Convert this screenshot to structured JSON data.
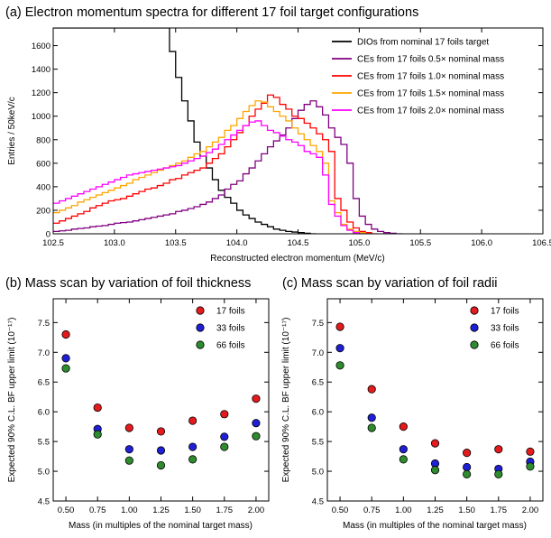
{
  "chart_data": [
    {
      "panel": "a",
      "type": "line",
      "title": "(a) Electron momentum spectra for different 17 foil target configurations",
      "xlabel": "Reconstructed electron momentum (MeV/c)",
      "ylabel": "Entries / 50keV/c",
      "xlim": [
        102.5,
        106.5
      ],
      "ylim": [
        0,
        1750
      ],
      "xticks": [
        "102.5",
        "103.0",
        "103.5",
        "104.0",
        "104.5",
        "105.0",
        "105.5",
        "106.0",
        "106.5"
      ],
      "yticks": [
        "0",
        "200",
        "400",
        "600",
        "800",
        "1000",
        "1200",
        "1400",
        "1600"
      ],
      "legend_position": "top-right",
      "bin_width": 0.05,
      "x_start": 102.5,
      "series": [
        {
          "name": "DIOs from nominal 17 foils target",
          "color": "#000000",
          "values": [
            1750,
            1750,
            1750,
            1750,
            1750,
            1750,
            1750,
            1750,
            1750,
            1750,
            1750,
            1750,
            1750,
            1750,
            1750,
            1750,
            1750,
            1750,
            1750,
            1550,
            1330,
            1130,
            960,
            780,
            660,
            560,
            460,
            370,
            310,
            260,
            200,
            160,
            130,
            100,
            80,
            60,
            40,
            30,
            20,
            15,
            10,
            5,
            0
          ]
        },
        {
          "name": "CEs from 17 foils 0.5× nominal mass",
          "color": "#800080",
          "values": [
            20,
            25,
            30,
            40,
            45,
            50,
            60,
            65,
            70,
            80,
            90,
            95,
            100,
            110,
            120,
            130,
            140,
            150,
            160,
            170,
            190,
            200,
            215,
            230,
            250,
            270,
            300,
            330,
            380,
            420,
            450,
            510,
            560,
            620,
            680,
            740,
            790,
            840,
            900,
            980,
            1050,
            1100,
            1130,
            1080,
            1010,
            900,
            820,
            760,
            600,
            300,
            150,
            80,
            40,
            20,
            10,
            5,
            0
          ]
        },
        {
          "name": "CEs from 17 foils 1.0× nominal mass",
          "color": "#ff0000",
          "values": [
            90,
            110,
            130,
            150,
            170,
            190,
            220,
            240,
            260,
            280,
            290,
            300,
            320,
            340,
            360,
            380,
            390,
            410,
            430,
            460,
            470,
            500,
            520,
            540,
            560,
            600,
            640,
            680,
            740,
            800,
            860,
            920,
            1000,
            1060,
            1110,
            1180,
            1160,
            1100,
            1060,
            1000,
            980,
            940,
            900,
            850,
            800,
            700,
            300,
            200,
            100,
            50,
            20,
            10,
            0
          ]
        },
        {
          "name": "CEs from 17 foils 1.5× nominal mass",
          "color": "#ffa500",
          "values": [
            180,
            200,
            220,
            240,
            270,
            290,
            310,
            330,
            350,
            370,
            390,
            410,
            430,
            460,
            480,
            500,
            520,
            540,
            560,
            580,
            600,
            620,
            650,
            680,
            700,
            740,
            780,
            820,
            880,
            920,
            980,
            1040,
            1090,
            1130,
            1120,
            1080,
            1040,
            1000,
            960,
            900,
            850,
            800,
            750,
            700,
            600,
            280,
            180,
            80,
            40,
            20,
            10,
            0
          ]
        },
        {
          "name": "CEs from 17 foils 2.0× nominal mass",
          "color": "#ff00ff",
          "values": [
            260,
            280,
            300,
            320,
            340,
            360,
            380,
            400,
            420,
            440,
            460,
            480,
            500,
            510,
            520,
            530,
            540,
            550,
            560,
            570,
            580,
            600,
            620,
            640,
            660,
            690,
            720,
            760,
            800,
            840,
            880,
            920,
            950,
            960,
            920,
            880,
            860,
            830,
            800,
            780,
            750,
            700,
            680,
            650,
            500,
            250,
            150,
            70,
            30,
            10,
            0
          ]
        }
      ]
    },
    {
      "panel": "b",
      "type": "scatter",
      "title": "(b) Mass scan by variation of foil thickness",
      "xlabel": "Mass (in multiples of the nominal target mass)",
      "ylabel": "Expected 90% C.L. BF upper limit (10⁻¹⁷)",
      "xlim": [
        0.4,
        2.1
      ],
      "ylim": [
        4.5,
        7.9
      ],
      "xticks": [
        "0.50",
        "0.75",
        "1.00",
        "1.25",
        "1.50",
        "1.75",
        "2.00"
      ],
      "yticks": [
        "4.5",
        "5.0",
        "5.5",
        "6.0",
        "6.5",
        "7.0",
        "7.5"
      ],
      "legend_position": "top-right",
      "x": [
        0.5,
        0.75,
        1.0,
        1.25,
        1.5,
        1.75,
        2.0
      ],
      "series": [
        {
          "name": "17 foils",
          "color": "#e41a1c",
          "values": [
            7.3,
            6.07,
            5.73,
            5.67,
            5.85,
            5.96,
            6.22
          ]
        },
        {
          "name": "33 foils",
          "color": "#1f1fd6",
          "values": [
            6.9,
            5.71,
            5.37,
            5.35,
            5.41,
            5.58,
            5.81
          ]
        },
        {
          "name": "66 foils",
          "color": "#2e8b2e",
          "values": [
            6.73,
            5.62,
            5.18,
            5.1,
            5.2,
            5.41,
            5.59
          ]
        }
      ]
    },
    {
      "panel": "c",
      "type": "scatter",
      "title": "(c) Mass scan by variation of foil radii",
      "xlabel": "Mass (in multiples of the nominal target mass)",
      "ylabel": "Expected 90% C.L. BF upper limit (10⁻¹⁷)",
      "xlim": [
        0.4,
        2.1
      ],
      "ylim": [
        4.5,
        7.9
      ],
      "xticks": [
        "0.50",
        "0.75",
        "1.00",
        "1.25",
        "1.50",
        "1.75",
        "2.00"
      ],
      "yticks": [
        "4.5",
        "5.0",
        "5.5",
        "6.0",
        "6.5",
        "7.0",
        "7.5"
      ],
      "legend_position": "top-right",
      "x": [
        0.5,
        0.75,
        1.0,
        1.25,
        1.5,
        1.75,
        2.0
      ],
      "series": [
        {
          "name": "17 foils",
          "color": "#e41a1c",
          "values": [
            7.43,
            6.38,
            5.75,
            5.47,
            5.31,
            5.37,
            5.33
          ]
        },
        {
          "name": "33 foils",
          "color": "#1f1fd6",
          "values": [
            7.07,
            5.9,
            5.37,
            5.13,
            5.07,
            5.04,
            5.16
          ]
        },
        {
          "name": "66 foils",
          "color": "#2e8b2e",
          "values": [
            6.78,
            5.73,
            5.2,
            5.02,
            4.95,
            4.95,
            5.08
          ]
        }
      ]
    }
  ]
}
